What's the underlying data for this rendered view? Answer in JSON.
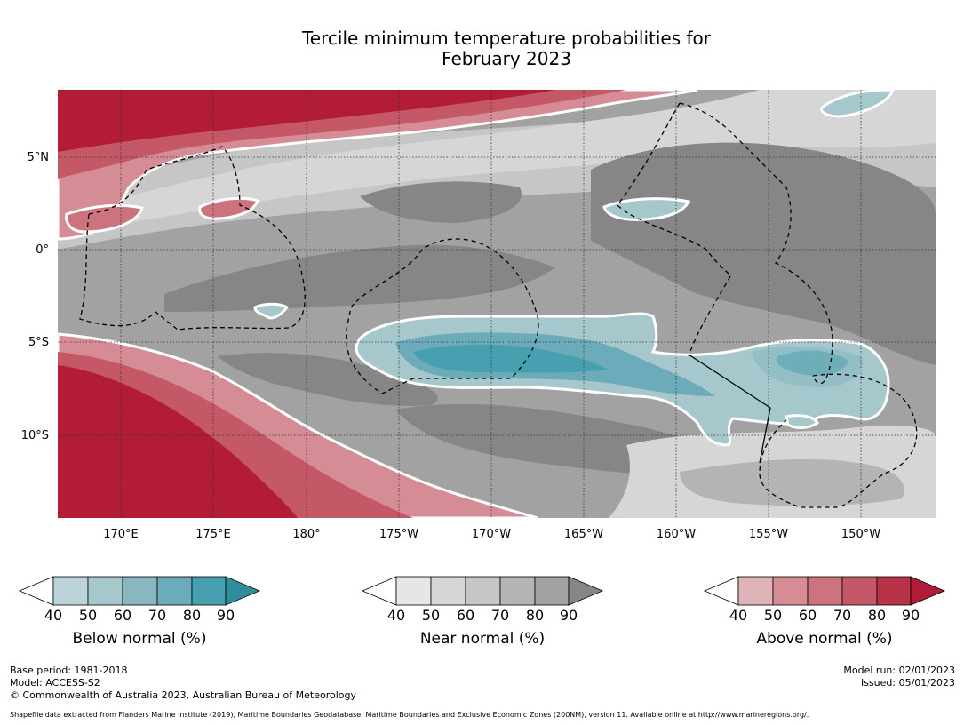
{
  "title_line1": "Tercile minimum temperature probabilities for",
  "title_line2": "February 2023",
  "lat_labels": [
    "5°N",
    "0°",
    "5°S",
    "10°S"
  ],
  "lon_labels": [
    "170°E",
    "175°E",
    "180°",
    "175°W",
    "170°W",
    "165°W",
    "160°W",
    "155°W",
    "150°W"
  ],
  "colorbars": [
    {
      "label": "Below normal (%)",
      "ticks": [
        "40",
        "50",
        "60",
        "70",
        "80",
        "90"
      ],
      "colors": [
        "#ffffff",
        "#bcd3da",
        "#a6c7cc",
        "#89b7c0",
        "#6babba",
        "#46a0b0",
        "#2e8f9c"
      ]
    },
    {
      "label": "Near normal (%)",
      "ticks": [
        "40",
        "50",
        "60",
        "70",
        "80",
        "90"
      ],
      "colors": [
        "#ffffff",
        "#e6e6e6",
        "#d6d6d6",
        "#c6c6c6",
        "#b4b4b4",
        "#a2a2a2",
        "#868686"
      ]
    },
    {
      "label": "Above normal (%)",
      "ticks": [
        "40",
        "50",
        "60",
        "70",
        "80",
        "90"
      ],
      "colors": [
        "#ffffff",
        "#e0b3b9",
        "#d58c95",
        "#cc737d",
        "#c45866",
        "#b93348",
        "#b21c38"
      ]
    }
  ],
  "footer": {
    "base_period": "Base period: 1981-2018",
    "model": "Model: ACCESS-S2",
    "copyright": "© Commonwealth of Australia 2023, Australian Bureau of Meteorology",
    "model_run": "Model run: 02/01/2023",
    "issued": "Issued: 05/01/2023",
    "shapefile": "Shapefile data extracted from Flanders Marine Institute (2019), Maritime Boundaries Geodatabase: Maritime Boundaries and Exclusive Economic Zones (200NM), version 11. Available online at http://www.marineregions.org/."
  }
}
